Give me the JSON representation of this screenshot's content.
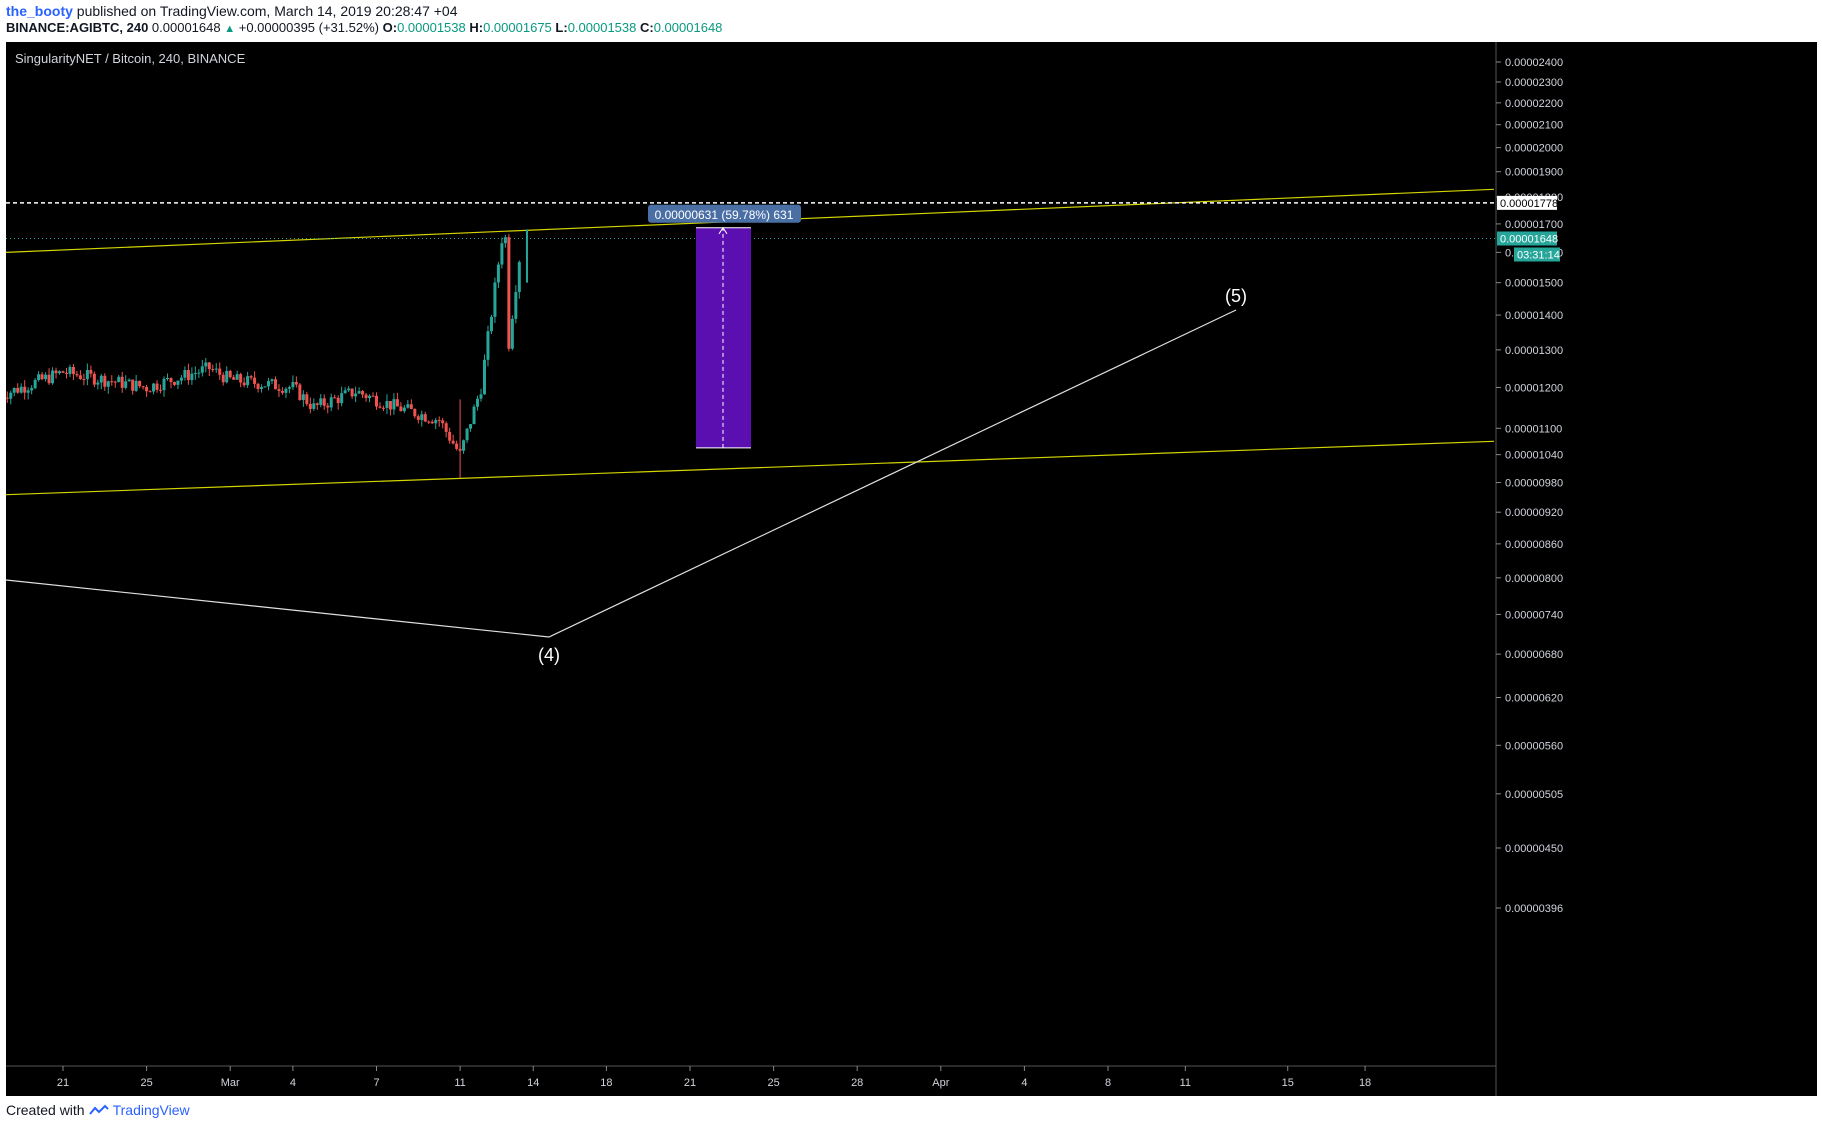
{
  "header": {
    "user": "the_booty",
    "published_text": "published on TradingView.com, March 14, 2019 20:28:47 +04",
    "symbol_line": "BINANCE:AGIBTC, 240",
    "last": "0.00001648",
    "change_arrow": "▲",
    "change": "+0.00000395 (+31.52%)",
    "o_label": "O:",
    "o": "0.00001538",
    "h_label": "H:",
    "h": "0.00001675",
    "l_label": "L:",
    "l": "0.00001538",
    "c_label": "C:",
    "c": "0.00001648"
  },
  "chart_title": "SingularityNET / Bitcoin, 240, BINANCE",
  "footer": {
    "created_with": "Created with",
    "brand": "TradingView"
  },
  "colors": {
    "background": "#000000",
    "up": "#26a69a",
    "down": "#ef5350",
    "trendline": "#d4d400",
    "wave": "#e0e0e0",
    "range_box": "#5b0fb0",
    "label_bg": "#4a6fa5"
  },
  "chart_data": {
    "type": "candlestick",
    "timeframe": "240",
    "y_axis": {
      "ticks": [
        "0.00002400",
        "0.00002300",
        "0.00002200",
        "0.00002100",
        "0.00002000",
        "0.00001900",
        "0.00001800",
        "0.00001700",
        "0.00001600",
        "0.00001500",
        "0.00001400",
        "0.00001300",
        "0.00001200",
        "0.00001100",
        "0.00001040",
        "0.00000980",
        "0.00000920",
        "0.00000860",
        "0.00000800",
        "0.00000740",
        "0.00000680",
        "0.00000620",
        "0.00000560",
        "0.00000505",
        "0.00000450",
        "0.00000396"
      ],
      "scale": "log"
    },
    "x_axis": {
      "ticks": [
        "21",
        "25",
        "Mar",
        "4",
        "7",
        "11",
        "14",
        "18",
        "21",
        "25",
        "28",
        "Apr",
        "4",
        "8",
        "11",
        "15",
        "18"
      ]
    },
    "price_lines": [
      {
        "label": "0.00001778",
        "style": "dashed",
        "color": "#ffffff"
      },
      {
        "label": "0.00001648",
        "style": "dotted",
        "color": "#26a69a"
      }
    ],
    "countdown": "03:31:14",
    "measure": {
      "label": "0.00000631 (59.78%) 631",
      "from": 1.055e-05,
      "to": 1.686e-05
    },
    "wave_labels": [
      "(4)",
      "(5)"
    ],
    "series_approx": [
      {
        "date": "Feb 18",
        "close": 1.18e-05
      },
      {
        "date": "Feb 21",
        "close": 1.24e-05
      },
      {
        "date": "Feb 25",
        "close": 1.2e-05
      },
      {
        "date": "Feb 28",
        "close": 1.25e-05
      },
      {
        "date": "Mar 1",
        "close": 1.22e-05
      },
      {
        "date": "Mar 4",
        "close": 1.2e-05
      },
      {
        "date": "Mar 5",
        "close": 1.15e-05
      },
      {
        "date": "Mar 7",
        "close": 1.19e-05
      },
      {
        "date": "Mar 9",
        "close": 1.15e-05
      },
      {
        "date": "Mar 11",
        "close": 1.12e-05
      },
      {
        "date": "Mar 12",
        "close": 1.04e-05
      },
      {
        "date": "Mar 13",
        "close": 1.2e-05
      },
      {
        "date": "Mar 14",
        "close": 1.648e-05
      }
    ]
  }
}
